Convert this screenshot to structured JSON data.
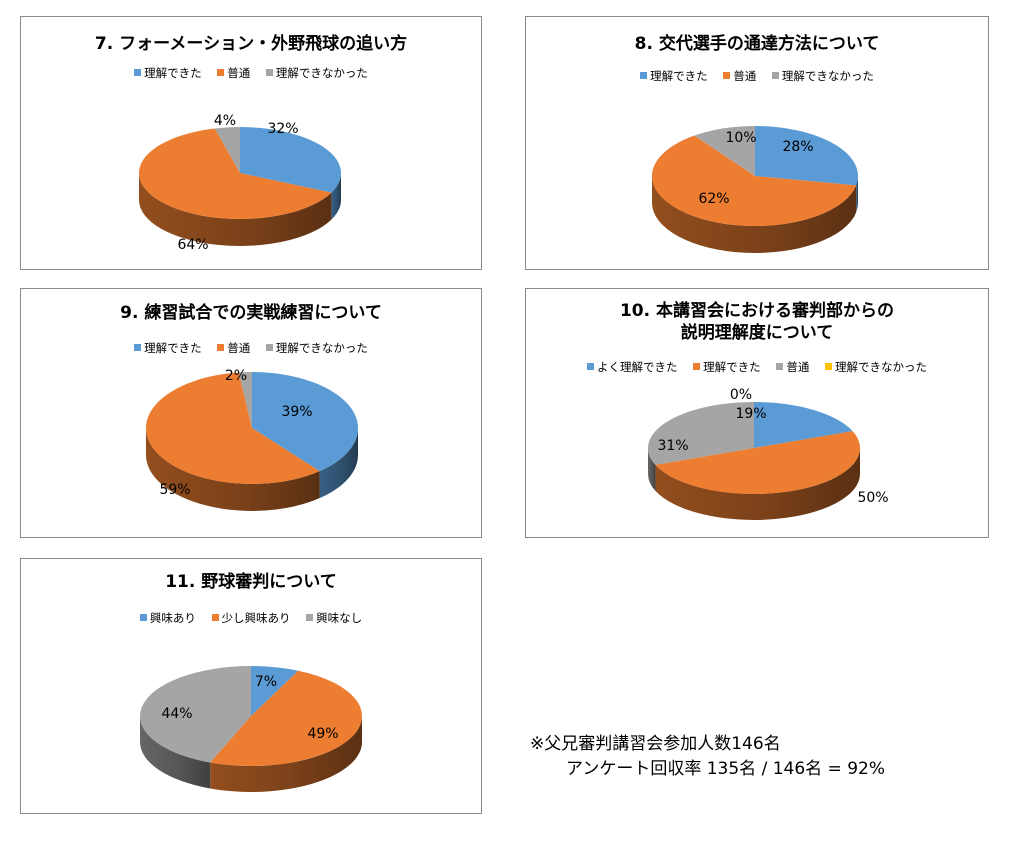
{
  "palette": {
    "blue": "#5b9bd5",
    "orange": "#ed7d31",
    "gray": "#a5a5a5",
    "yellow": "#ffc000"
  },
  "chart_data": [
    {
      "type": "pie",
      "title_num": "7.",
      "title": "フォーメーション・外野飛球の追い方",
      "legend": [
        "理解できた",
        "普通",
        "理解できなかった"
      ],
      "values": [
        32,
        64,
        4
      ],
      "labels": [
        "32%",
        "64%",
        "4%"
      ],
      "colors": [
        "#5b9bd5",
        "#ed7d31",
        "#a5a5a5"
      ]
    },
    {
      "type": "pie",
      "title_num": "8.",
      "title": "交代選手の通達方法について",
      "legend": [
        "理解できた",
        "普通",
        "理解できなかった"
      ],
      "values": [
        28,
        62,
        10
      ],
      "labels": [
        "28%",
        "62%",
        "10%"
      ],
      "colors": [
        "#5b9bd5",
        "#ed7d31",
        "#a5a5a5"
      ]
    },
    {
      "type": "pie",
      "title_num": "9.",
      "title": "練習試合での実戦練習について",
      "legend": [
        "理解できた",
        "普通",
        "理解できなかった"
      ],
      "values": [
        39,
        59,
        2
      ],
      "labels": [
        "39%",
        "59%",
        "2%"
      ],
      "colors": [
        "#5b9bd5",
        "#ed7d31",
        "#a5a5a5"
      ]
    },
    {
      "type": "pie",
      "title_num": "10.",
      "title": "本講習会における審判部からの",
      "title2": "説明理解度について",
      "legend": [
        "よく理解できた",
        "理解できた",
        "普通",
        "理解できなかった"
      ],
      "values": [
        19,
        50,
        31,
        0
      ],
      "labels": [
        "19%",
        "50%",
        "31%",
        "0%"
      ],
      "colors": [
        "#5b9bd5",
        "#ed7d31",
        "#a5a5a5",
        "#ffc000"
      ]
    },
    {
      "type": "pie",
      "title_num": "11.",
      "title": "野球審判について",
      "legend": [
        "興味あり",
        "少し興味あり",
        "興味なし"
      ],
      "values": [
        7,
        49,
        44
      ],
      "labels": [
        "7%",
        "49%",
        "44%"
      ],
      "colors": [
        "#5b9bd5",
        "#ed7d31",
        "#a5a5a5"
      ]
    }
  ],
  "note": {
    "line1": "※父兄審判講習会参加人数146名",
    "line2": "アンケート回収率 135名 / 146名 = 92%"
  }
}
